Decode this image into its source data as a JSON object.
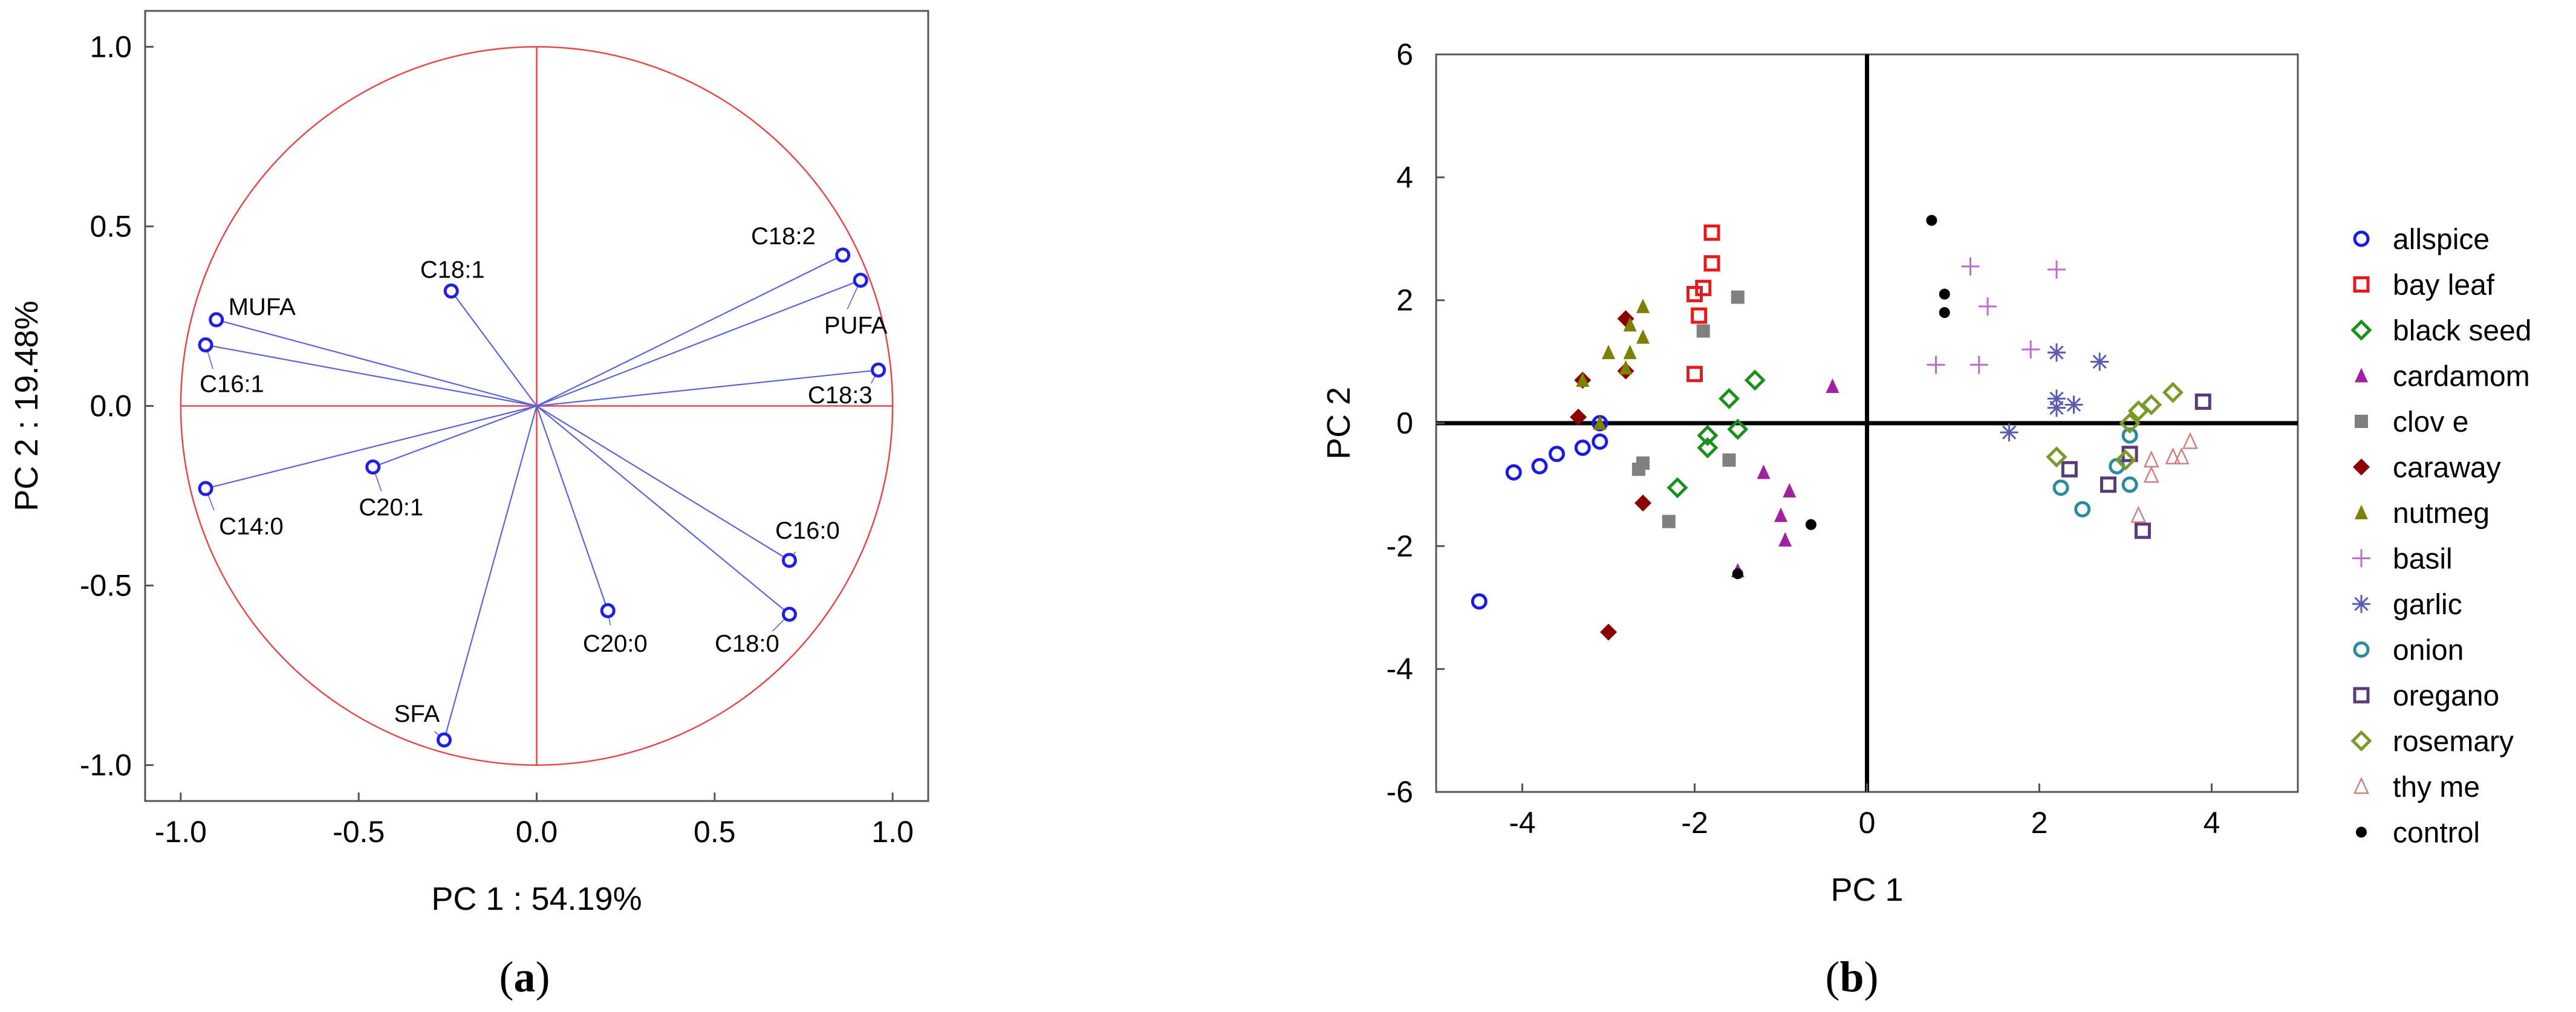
{
  "chart_data": [
    {
      "type": "scatter",
      "subtype": "loading-plot",
      "panel_label": "(a)",
      "panel_letter": "a",
      "xlabel": "PC 1 : 54.19%",
      "ylabel": "PC 2 : 19.48%",
      "xlim": [
        -1.1,
        1.1
      ],
      "ylim": [
        -1.1,
        1.1
      ],
      "xticks": [
        -1.0,
        -0.5,
        0.0,
        0.5,
        1.0
      ],
      "yticks": [
        -1.0,
        -0.5,
        0.0,
        0.5,
        1.0
      ],
      "xtick_labels": [
        "-1.0",
        "-0.5",
        "0.0",
        "0.5",
        "1.0"
      ],
      "ytick_labels": [
        "-1.0",
        "-0.5",
        "0.0",
        "0.5",
        "1.0"
      ],
      "unit_circle": true,
      "colors": {
        "vectors": "#5b63d9",
        "points": "#1f1fe6",
        "circle_and_axes": "#e34848"
      },
      "points": [
        {
          "label": "C18:2",
          "x": 0.86,
          "y": 0.42
        },
        {
          "label": "PUFA",
          "x": 0.91,
          "y": 0.35
        },
        {
          "label": "C18:3",
          "x": 0.96,
          "y": 0.1
        },
        {
          "label": "C16:0",
          "x": 0.71,
          "y": -0.43
        },
        {
          "label": "C18:0",
          "x": 0.71,
          "y": -0.58
        },
        {
          "label": "C20:0",
          "x": 0.2,
          "y": -0.57
        },
        {
          "label": "SFA",
          "x": -0.26,
          "y": -0.93
        },
        {
          "label": "C18:1",
          "x": -0.24,
          "y": 0.32
        },
        {
          "label": "MUFA",
          "x": -0.9,
          "y": 0.24
        },
        {
          "label": "C16:1",
          "x": -0.93,
          "y": 0.17
        },
        {
          "label": "C20:1",
          "x": -0.46,
          "y": -0.17
        },
        {
          "label": "C14:0",
          "x": -0.93,
          "y": -0.23
        }
      ]
    },
    {
      "type": "scatter",
      "panel_label": "(b)",
      "panel_letter": "b",
      "xlabel": "PC 1",
      "ylabel": "PC 2",
      "xlim": [
        -5,
        5
      ],
      "ylim": [
        -6,
        6
      ],
      "xticks": [
        -4,
        -2,
        0,
        2,
        4
      ],
      "yticks": [
        -6,
        -4,
        -2,
        0,
        2,
        4,
        6
      ],
      "xtick_labels": [
        "-4",
        "-2",
        "0",
        "2",
        "4"
      ],
      "ytick_labels": [
        "-6",
        "-4",
        "-2",
        "0",
        "2",
        "4",
        "6"
      ],
      "legend_position": "right",
      "series": [
        {
          "name": "allspice",
          "marker": "circle-open",
          "color": "#1a1ae6",
          "points": [
            [
              -4.5,
              -2.9
            ],
            [
              -4.1,
              -0.8
            ],
            [
              -3.8,
              -0.7
            ],
            [
              -3.6,
              -0.5
            ],
            [
              -3.3,
              -0.4
            ],
            [
              -3.1,
              0.0
            ],
            [
              -3.1,
              -0.3
            ]
          ]
        },
        {
          "name": "bay leaf",
          "marker": "square-open",
          "color": "#e61a1a",
          "points": [
            [
              -1.8,
              3.1
            ],
            [
              -1.8,
              2.6
            ],
            [
              -1.9,
              2.2
            ],
            [
              -2.0,
              2.1
            ],
            [
              -1.95,
              1.75
            ],
            [
              -2.0,
              0.8
            ]
          ]
        },
        {
          "name": "black seed",
          "marker": "diamond-open",
          "color": "#1a8f1a",
          "points": [
            [
              -1.3,
              0.7
            ],
            [
              -1.6,
              0.4
            ],
            [
              -1.5,
              -0.1
            ],
            [
              -1.85,
              -0.2
            ],
            [
              -1.85,
              -0.4
            ],
            [
              -2.2,
              -1.05
            ]
          ]
        },
        {
          "name": "cardamom",
          "marker": "triangle-filled",
          "color": "#a020a0",
          "points": [
            [
              -0.4,
              0.6
            ],
            [
              -1.2,
              -0.8
            ],
            [
              -0.9,
              -1.1
            ],
            [
              -1.0,
              -1.5
            ],
            [
              -0.95,
              -1.9
            ],
            [
              -1.5,
              -2.4
            ]
          ]
        },
        {
          "name": "clov e",
          "marker": "square-filled",
          "color": "#808080",
          "points": [
            [
              -1.5,
              2.05
            ],
            [
              -1.9,
              1.5
            ],
            [
              -1.6,
              -0.6
            ],
            [
              -2.6,
              -0.65
            ],
            [
              -2.65,
              -0.75
            ],
            [
              -2.3,
              -1.6
            ]
          ]
        },
        {
          "name": "caraway",
          "marker": "diamond-filled",
          "color": "#8b0000",
          "points": [
            [
              -2.8,
              1.7
            ],
            [
              -2.8,
              0.85
            ],
            [
              -3.3,
              0.7
            ],
            [
              -3.35,
              0.1
            ],
            [
              -2.6,
              -1.3
            ],
            [
              -3.0,
              -3.4
            ]
          ]
        },
        {
          "name": "nutmeg",
          "marker": "triangle-filled",
          "color": "#808000",
          "points": [
            [
              -2.6,
              1.9
            ],
            [
              -2.75,
              1.6
            ],
            [
              -2.6,
              1.4
            ],
            [
              -3.0,
              1.15
            ],
            [
              -2.75,
              1.15
            ],
            [
              -2.8,
              0.9
            ],
            [
              -3.3,
              0.7
            ],
            [
              -3.1,
              0.0
            ]
          ]
        },
        {
          "name": "basil",
          "marker": "plus",
          "color": "#c06ad0",
          "points": [
            [
              1.2,
              2.55
            ],
            [
              2.2,
              2.5
            ],
            [
              1.4,
              1.9
            ],
            [
              1.9,
              1.2
            ],
            [
              2.2,
              1.15
            ],
            [
              0.8,
              0.95
            ],
            [
              1.3,
              0.95
            ]
          ]
        },
        {
          "name": "garlic",
          "marker": "asterisk",
          "color": "#5a5ab4",
          "points": [
            [
              2.2,
              1.15
            ],
            [
              2.7,
              1.0
            ],
            [
              2.2,
              0.4
            ],
            [
              2.4,
              0.3
            ],
            [
              2.2,
              0.25
            ],
            [
              1.65,
              -0.15
            ]
          ]
        },
        {
          "name": "onion",
          "marker": "circle-open",
          "color": "#2a8aa0",
          "points": [
            [
              3.05,
              -0.2
            ],
            [
              2.9,
              -0.7
            ],
            [
              3.05,
              -1.0
            ],
            [
              2.25,
              -1.05
            ],
            [
              2.5,
              -1.4
            ]
          ]
        },
        {
          "name": "oregano",
          "marker": "square-open",
          "color": "#5a3a78",
          "points": [
            [
              3.9,
              0.35
            ],
            [
              3.05,
              -0.5
            ],
            [
              2.35,
              -0.75
            ],
            [
              2.8,
              -1.0
            ],
            [
              3.2,
              -1.75
            ]
          ]
        },
        {
          "name": "rosemary",
          "marker": "diamond-open",
          "color": "#7a9a2a",
          "points": [
            [
              3.55,
              0.5
            ],
            [
              3.3,
              0.3
            ],
            [
              3.15,
              0.2
            ],
            [
              3.05,
              0.0
            ],
            [
              2.2,
              -0.55
            ],
            [
              3.0,
              -0.6
            ]
          ]
        },
        {
          "name": "thy me",
          "marker": "triangle-open",
          "color": "#d08080",
          "points": [
            [
              3.75,
              -0.3
            ],
            [
              3.55,
              -0.55
            ],
            [
              3.3,
              -0.6
            ],
            [
              3.65,
              -0.55
            ],
            [
              3.3,
              -0.85
            ],
            [
              3.15,
              -1.5
            ]
          ]
        },
        {
          "name": "control",
          "marker": "dot",
          "color": "#000000",
          "points": [
            [
              0.75,
              3.3
            ],
            [
              0.9,
              2.1
            ],
            [
              0.9,
              1.8
            ],
            [
              -0.65,
              -1.65
            ],
            [
              -1.5,
              -2.45
            ]
          ]
        }
      ]
    }
  ]
}
